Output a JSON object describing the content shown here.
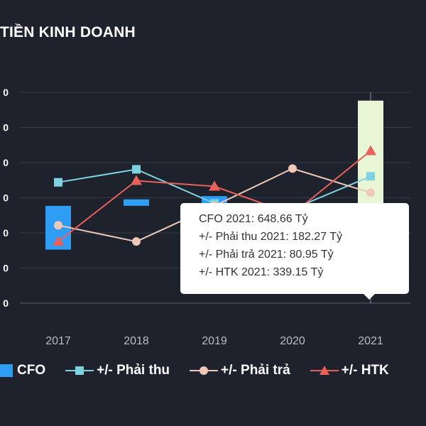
{
  "chart_data": {
    "type": "bar-line",
    "title": "TIỀN KINH DOANH",
    "categories": [
      "2017",
      "2018",
      "2019",
      "2020",
      "2021"
    ],
    "y_tick_labels": [
      "0",
      "0",
      "0",
      "0",
      "0",
      "0",
      "0"
    ],
    "bar_series": {
      "name": "CFO",
      "color": "#2f9df4",
      "values": [
        -270,
        40,
        60,
        5,
        648.66
      ],
      "highlight_color": "#e9f6d5"
    },
    "line_series": [
      {
        "name": "+/- Phải thu",
        "color": "#7fd3e0",
        "marker": "square",
        "values": [
          145,
          225,
          15,
          -20,
          182.27
        ]
      },
      {
        "name": "+/- Phải trả",
        "color": "#f0c8b8",
        "marker": "circle",
        "values": [
          -120,
          -220,
          0,
          230,
          80.95
        ]
      },
      {
        "name": "+/- HTK",
        "color": "#e8605a",
        "marker": "triangle",
        "values": [
          -220,
          155,
          120,
          -50,
          339.15
        ]
      }
    ],
    "ylim": [
      -600,
      700
    ],
    "grid": true,
    "legend": "bottom"
  },
  "tooltip": {
    "lines": [
      "CFO 2021: 648.66 Tỷ",
      "+/- Phải thu 2021: 182.27 Tỷ",
      "+/- Phải trả 2021: 80.95 Tỷ",
      "+/- HTK 2021: 339.15 Tỷ"
    ]
  }
}
